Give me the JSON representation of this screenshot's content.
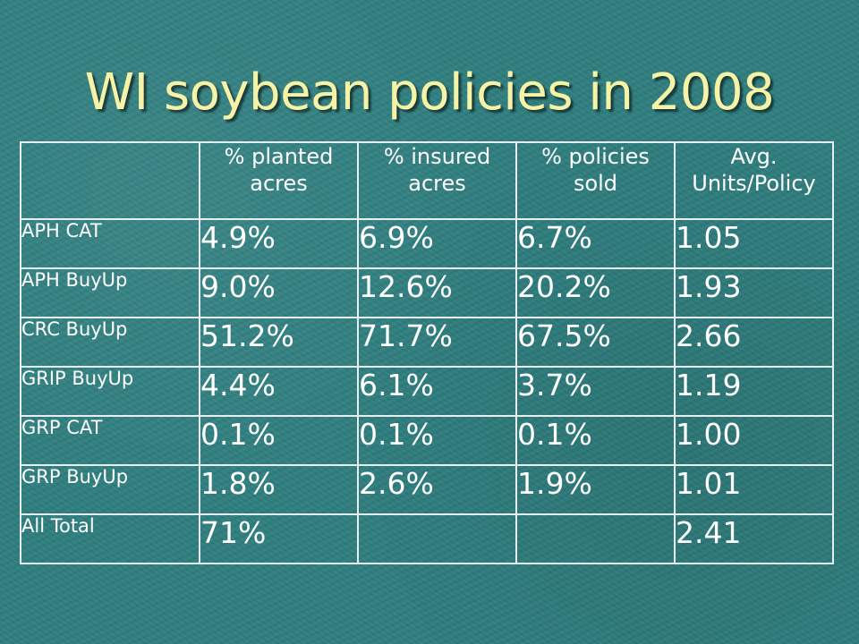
{
  "title": "WI soybean policies in 2008",
  "table": {
    "headers": [
      "",
      "% planted acres",
      "% insured acres",
      "% policies sold",
      "Avg. Units/Policy"
    ],
    "rows": [
      {
        "label": "APH CAT",
        "cells": [
          "4.9%",
          "6.9%",
          "6.7%",
          "1.05"
        ]
      },
      {
        "label": "APH BuyUp",
        "cells": [
          "9.0%",
          "12.6%",
          "20.2%",
          "1.93"
        ]
      },
      {
        "label": "CRC BuyUp",
        "cells": [
          "51.2%",
          "71.7%",
          "67.5%",
          "2.66"
        ]
      },
      {
        "label": "GRIP BuyUp",
        "cells": [
          "4.4%",
          "6.1%",
          "3.7%",
          "1.19"
        ]
      },
      {
        "label": "GRP CAT",
        "cells": [
          "0.1%",
          "0.1%",
          "0.1%",
          "1.00"
        ]
      },
      {
        "label": "GRP BuyUp",
        "cells": [
          "1.8%",
          "2.6%",
          "1.9%",
          "1.01"
        ]
      },
      {
        "label": "All Total",
        "cells": [
          "71%",
          "",
          "",
          "2.41"
        ]
      }
    ]
  },
  "colors": {
    "background": "#2f7f80",
    "title": "#f6f3a6",
    "text": "#ffffff",
    "border": "#e6eef0"
  }
}
